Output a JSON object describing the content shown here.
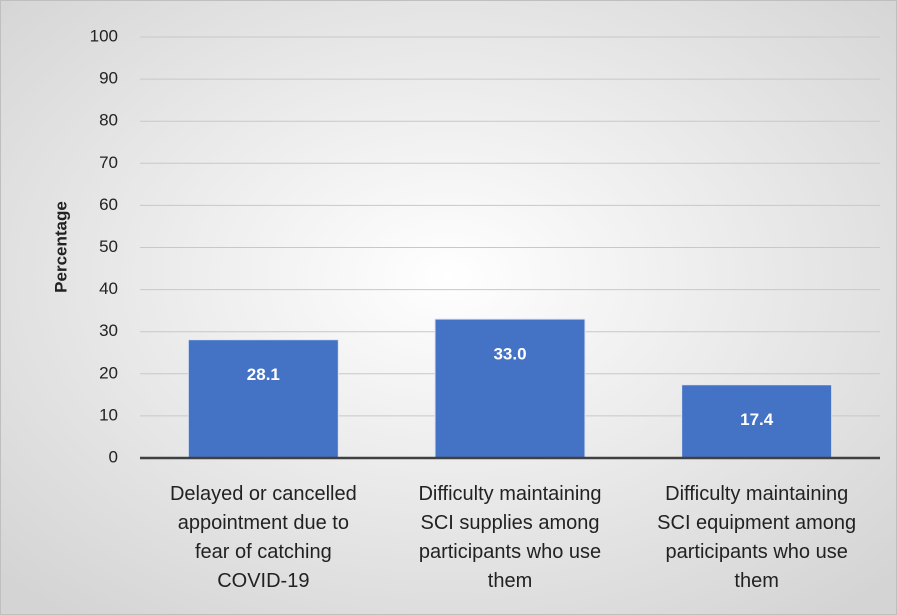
{
  "chart_data": {
    "type": "bar",
    "y_axis_label": "Percentage",
    "categories": [
      "Delayed or cancelled appointment due to fear of catching COVID-19",
      "Difficulty maintaining SCI supplies among participants who use them",
      "Difficulty maintaining SCI equipment among participants who use them"
    ],
    "values": [
      28.1,
      33.0,
      17.4
    ],
    "value_labels": [
      "28.1",
      "33.0",
      "17.4"
    ],
    "color": "#4472c4",
    "ylim": [
      0,
      100
    ],
    "yticks": [
      0,
      10,
      20,
      30,
      40,
      50,
      60,
      70,
      80,
      90,
      100
    ],
    "grid": true
  }
}
